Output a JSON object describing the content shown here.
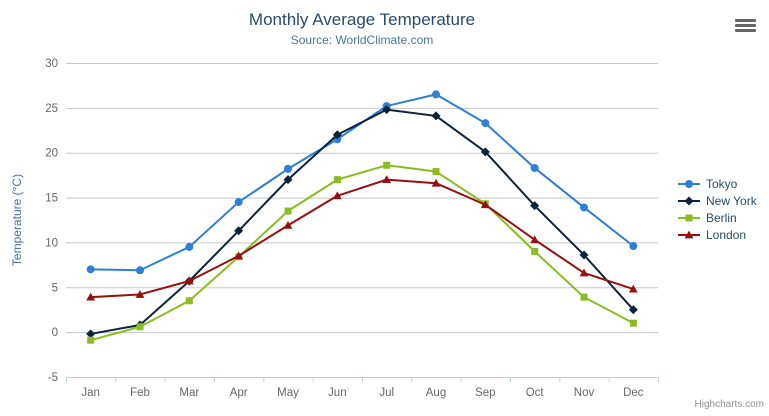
{
  "chart_data": {
    "type": "line",
    "title": "Monthly Average Temperature",
    "subtitle": "Source: WorldClimate.com",
    "xlabel": "",
    "ylabel": "Temperature (°C)",
    "categories": [
      "Jan",
      "Feb",
      "Mar",
      "Apr",
      "May",
      "Jun",
      "Jul",
      "Aug",
      "Sep",
      "Oct",
      "Nov",
      "Dec"
    ],
    "ylim": [
      -5,
      30
    ],
    "yticks": [
      -5,
      0,
      5,
      10,
      15,
      20,
      25,
      30
    ],
    "grid": "horizontal",
    "legend_position": "right",
    "series": [
      {
        "name": "Tokyo",
        "color": "#2f7ed8",
        "marker": "circle",
        "values": [
          7.0,
          6.9,
          9.5,
          14.5,
          18.2,
          21.5,
          25.2,
          26.5,
          23.3,
          18.3,
          13.9,
          9.6
        ]
      },
      {
        "name": "New York",
        "color": "#0d233a",
        "marker": "diamond",
        "values": [
          -0.2,
          0.8,
          5.7,
          11.3,
          17.0,
          22.0,
          24.8,
          24.1,
          20.1,
          14.1,
          8.6,
          2.5
        ]
      },
      {
        "name": "Berlin",
        "color": "#8bbc21",
        "marker": "square",
        "values": [
          -0.9,
          0.6,
          3.5,
          8.4,
          13.5,
          17.0,
          18.6,
          17.9,
          14.3,
          9.0,
          3.9,
          1.0
        ]
      },
      {
        "name": "London",
        "color": "#970f0f",
        "marker": "triangle",
        "values": [
          3.9,
          4.2,
          5.7,
          8.5,
          11.9,
          15.2,
          17.0,
          16.6,
          14.2,
          10.3,
          6.6,
          4.8
        ]
      }
    ],
    "credits": "Highcharts.com"
  },
  "icons": {
    "export_menu": "hamburger-icon"
  },
  "style": {
    "title_color": "#274b6d",
    "subtitle_color": "#4d759e",
    "axis_title_color": "#4572a7",
    "axis_label_color": "#666666",
    "grid_color": "#c8c8c8",
    "axis_line_color": "#c0d0e0",
    "legend_text_color": "#274b6d",
    "credits_color": "#909090"
  }
}
